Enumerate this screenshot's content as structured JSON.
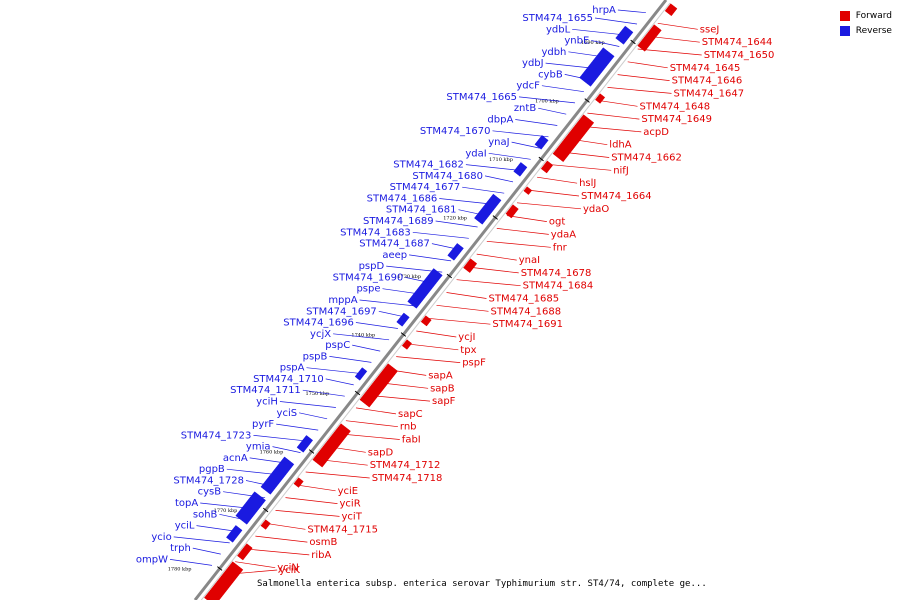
{
  "caption": "Salmonella enterica subsp. enterica serovar Typhimurium str. ST4/74, complete ge...",
  "legend": [
    {
      "label": "Forward",
      "color": "#e00000"
    },
    {
      "label": "Reverse",
      "color": "#1a1ae0"
    }
  ],
  "colors": {
    "forward": "#e00000",
    "reverse": "#1a1ae0",
    "axis": "#888888"
  },
  "ticks": [
    "1690 kbp",
    "1700 kbp",
    "1710 kbp",
    "1720 kbp",
    "1730 kbp",
    "1740 kbp",
    "1750 kbp",
    "1760 kbp",
    "1770 kbp",
    "1780 kbp"
  ],
  "forward_labels": [
    "sseJ",
    "STM474_1644",
    "STM474_1650",
    "STM474_1645",
    "STM474_1646",
    "STM474_1647",
    "STM474_1648",
    "STM474_1649",
    "acpD",
    "ldhA",
    "STM474_1662",
    "nifJ",
    "hslJ",
    "STM474_1664",
    "ydaO",
    "ogt",
    "ydaA",
    "fnr",
    "ynaI",
    "STM474_1678",
    "STM474_1684",
    "STM474_1685",
    "STM474_1688",
    "STM474_1691",
    "ycjI",
    "tpx",
    "pspF",
    "sapA",
    "sapB",
    "sapF",
    "sapC",
    "rnb",
    "fabI",
    "sapD",
    "STM474_1712",
    "STM474_1718",
    "yciE",
    "yciR",
    "yciT",
    "STM474_1715",
    "osmB",
    "ribA",
    "yciN",
    "yciK"
  ],
  "reverse_labels": [
    "hrpA",
    "STM474_1655",
    "ydbL",
    "ynbE",
    "ydbh",
    "ydbJ",
    "cybB",
    "ydcF",
    "STM474_1665",
    "zntB",
    "dbpA",
    "STM474_1670",
    "ynaJ",
    "ydaI",
    "STM474_1682",
    "STM474_1680",
    "STM474_1677",
    "STM474_1686",
    "STM474_1681",
    "STM474_1689",
    "STM474_1683",
    "STM474_1687",
    "aeep",
    "pspD",
    "STM474_1690",
    "pspe",
    "mppA",
    "STM474_1697",
    "STM474_1696",
    "ycjX",
    "pspC",
    "pspB",
    "pspA",
    "STM474_1710",
    "STM474_1711",
    "yciH",
    "yciS",
    "pyrF",
    "STM474_1723",
    "ymia",
    "acnA",
    "pgpB",
    "STM474_1728",
    "cysB",
    "topA",
    "sohB",
    "yciL",
    "ycio",
    "trph",
    "ompW"
  ]
}
